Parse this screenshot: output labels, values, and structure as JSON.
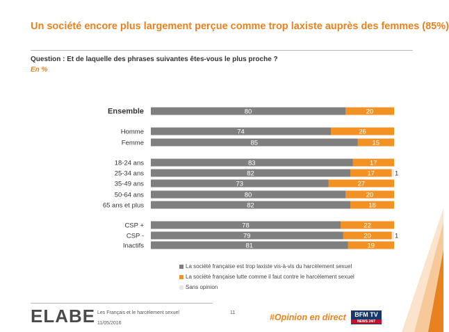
{
  "header": {
    "title": "Un société encore plus largement perçue comme trop laxiste auprès des femmes (85%)",
    "question": "Question : Et de laquelle des phrases suivantes êtes-vous le plus proche ?",
    "unit": "En %"
  },
  "colors": {
    "grey": "#7f7f7f",
    "orange": "#f39224",
    "light": "#e6e6e6",
    "accent": "#e8821e"
  },
  "chart_data": {
    "type": "bar",
    "orientation": "horizontal",
    "stacked": true,
    "xlim": [
      0,
      100
    ],
    "categories": [
      "Ensemble",
      "Homme",
      "Femme",
      "18-24 ans",
      "25-34 ans",
      "35-49 ans",
      "50-64 ans",
      "65 ans et plus",
      "CSP +",
      "CSP -",
      "Inactifs"
    ],
    "series": [
      {
        "name": "La société française est trop laxiste vis-à-vis du harcèlement sexuel",
        "color": "#7f7f7f",
        "values": [
          80,
          74,
          85,
          83,
          82,
          73,
          80,
          82,
          78,
          79,
          81
        ]
      },
      {
        "name": "La société française lutte comme il faut contre le harcèlement sexuel",
        "color": "#f39224",
        "values": [
          20,
          26,
          15,
          17,
          17,
          27,
          20,
          18,
          22,
          20,
          19
        ]
      },
      {
        "name": "Sans opinion",
        "color": "#e6e6e6",
        "values": [
          0,
          0,
          0,
          0,
          1,
          0,
          0,
          0,
          0,
          1,
          0
        ]
      }
    ],
    "legend": "bottom"
  },
  "footer": {
    "logo": "ELABE",
    "study": "Les Français et le harcèlement sexuel",
    "date": "11/05/2016",
    "page": "11",
    "hashtag": "#Opinion en direct",
    "partner": "BFM TV",
    "partner_sub": "NEWS 24/7"
  }
}
